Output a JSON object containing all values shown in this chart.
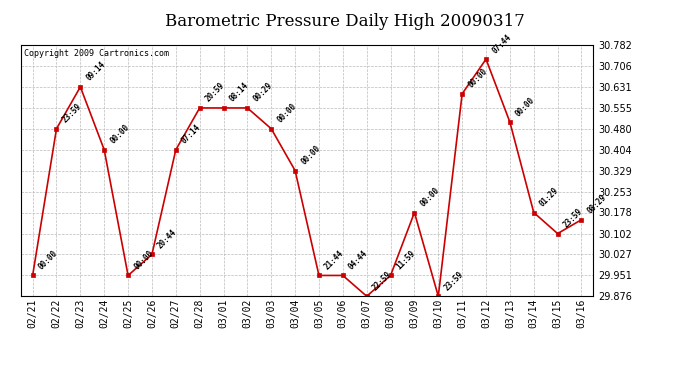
{
  "title": "Barometric Pressure Daily High 20090317",
  "copyright": "Copyright 2009 Cartronics.com",
  "background_color": "#ffffff",
  "grid_color": "#bbbbbb",
  "line_color": "#cc0000",
  "marker_color": "#cc0000",
  "x_labels": [
    "02/21",
    "02/22",
    "02/23",
    "02/24",
    "02/25",
    "02/26",
    "02/27",
    "02/28",
    "03/01",
    "03/02",
    "03/03",
    "03/04",
    "03/05",
    "03/06",
    "03/07",
    "03/08",
    "03/09",
    "03/10",
    "03/11",
    "03/12",
    "03/13",
    "03/14",
    "03/15",
    "03/16"
  ],
  "y_values": [
    29.951,
    30.48,
    30.631,
    30.404,
    29.951,
    30.027,
    30.404,
    30.555,
    30.555,
    30.555,
    30.48,
    30.329,
    29.951,
    29.951,
    29.876,
    29.951,
    30.178,
    29.876,
    30.606,
    30.731,
    30.504,
    30.178,
    30.102,
    30.152
  ],
  "point_labels": [
    "00:00",
    "23:59",
    "09:14",
    "00:00",
    "00:00",
    "20:44",
    "07:14",
    "20:59",
    "08:14",
    "00:29",
    "00:00",
    "00:00",
    "21:44",
    "04:44",
    "22:59",
    "11:59",
    "00:00",
    "23:59",
    "00:00",
    "07:44",
    "00:00",
    "01:29",
    "23:59",
    "08:29"
  ],
  "ylim": [
    29.876,
    30.782
  ],
  "yticks": [
    29.876,
    29.951,
    30.027,
    30.102,
    30.178,
    30.253,
    30.329,
    30.404,
    30.48,
    30.555,
    30.631,
    30.706,
    30.782
  ],
  "title_fontsize": 12,
  "copyright_fontsize": 6,
  "label_fontsize": 6,
  "tick_fontsize": 7,
  "point_label_fontsize": 5.5
}
